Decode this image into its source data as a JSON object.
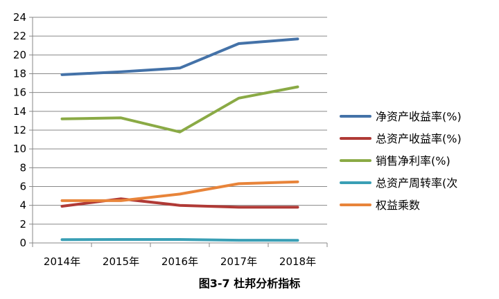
{
  "chart_data": {
    "type": "line",
    "title": "",
    "xlabel": "",
    "ylabel": "",
    "categories": [
      "2014年",
      "2015年",
      "2016年",
      "2017年",
      "2018年"
    ],
    "ylim": [
      0,
      24
    ],
    "yticks": [
      "0",
      "2",
      "4",
      "6",
      "8",
      "10",
      "12",
      "14",
      "16",
      "18",
      "20",
      "22",
      "24"
    ],
    "grid": true,
    "legend_position": "right",
    "series": [
      {
        "name": "净资产收益率(%)",
        "color": "#4472a8",
        "values": [
          17.9,
          18.2,
          18.6,
          21.2,
          21.7
        ]
      },
      {
        "name": "总资产收益率(%)",
        "color": "#b03a36",
        "values": [
          3.9,
          4.7,
          4.0,
          3.8,
          3.8
        ]
      },
      {
        "name": "销售净利率(%)",
        "color": "#8aaa45",
        "values": [
          13.2,
          13.3,
          11.8,
          15.4,
          16.6
        ]
      },
      {
        "name": "总资产周转率(次",
        "color": "#3a9fb5",
        "values": [
          0.35,
          0.37,
          0.37,
          0.29,
          0.28
        ]
      },
      {
        "name": "权益乘数",
        "color": "#e8843a",
        "values": [
          4.5,
          4.5,
          5.2,
          6.3,
          6.5
        ]
      }
    ]
  },
  "caption": "图3-7  杜邦分析指标"
}
